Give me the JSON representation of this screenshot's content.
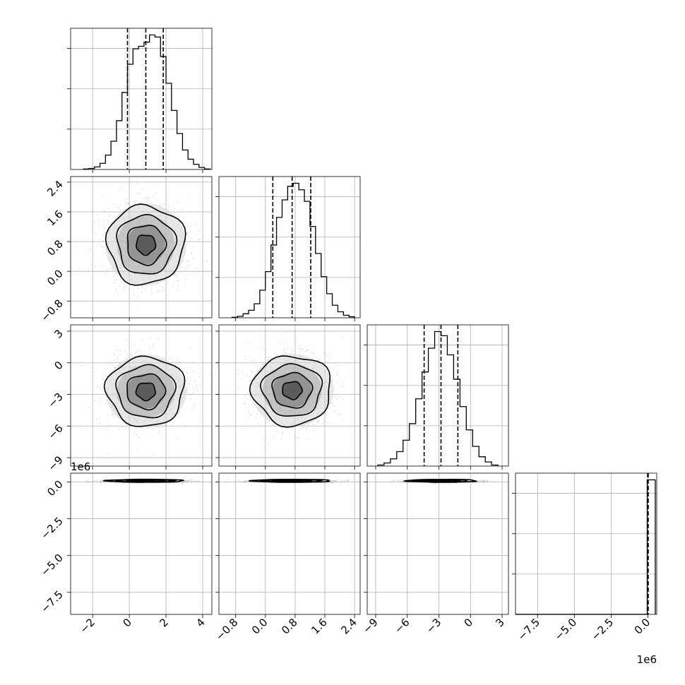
{
  "chart_data": {
    "type": "corner",
    "parameters": 4,
    "grid": true,
    "quantiles": [
      0.16,
      0.5,
      0.84
    ],
    "axes": [
      {
        "range": [
          -3.2,
          4.5
        ],
        "ticks": [
          -2,
          0,
          2,
          4
        ],
        "tick_labels": [
          "−2",
          "0",
          "2",
          "4"
        ],
        "offset_label": ""
      },
      {
        "range": [
          -1.25,
          2.55
        ],
        "ticks": [
          -0.8,
          0.0,
          0.8,
          1.6,
          2.4
        ],
        "tick_labels": [
          "−0.8",
          "0.0",
          "0.8",
          "1.6",
          "2.4"
        ],
        "offset_label": ""
      },
      {
        "range": [
          -9.8,
          3.6
        ],
        "ticks": [
          -9,
          -6,
          -3,
          0,
          3
        ],
        "tick_labels": [
          "−9",
          "−6",
          "−3",
          "0",
          "3"
        ],
        "offset_label": ""
      },
      {
        "range": [
          -9.0,
          0.6
        ],
        "ticks": [
          -7.5,
          -5.0,
          -2.5,
          0.0
        ],
        "tick_labels": [
          "−7.5",
          "−5.0",
          "−2.5",
          "0.0"
        ],
        "offset_label": "1e6"
      }
    ],
    "marginals": [
      {
        "param": 0,
        "quantile_values": [
          -0.1,
          0.9,
          1.85
        ],
        "bin_edges": [
          -2.5,
          -2.2,
          -1.9,
          -1.6,
          -1.3,
          -1.0,
          -0.7,
          -0.4,
          -0.1,
          0.2,
          0.5,
          0.8,
          1.1,
          1.4,
          1.7,
          2.0,
          2.3,
          2.6,
          2.9,
          3.2,
          3.5,
          3.8,
          4.1,
          4.4
        ],
        "counts": [
          1,
          2,
          5,
          12,
          28,
          55,
          95,
          150,
          205,
          235,
          240,
          248,
          262,
          258,
          220,
          168,
          115,
          70,
          38,
          20,
          10,
          4,
          1
        ]
      },
      {
        "param": 1,
        "quantile_values": [
          0.2,
          0.72,
          1.22
        ],
        "bin_edges": [
          -0.9,
          -0.75,
          -0.6,
          -0.45,
          -0.3,
          -0.15,
          0.0,
          0.15,
          0.3,
          0.45,
          0.6,
          0.75,
          0.9,
          1.05,
          1.2,
          1.35,
          1.5,
          1.65,
          1.8,
          1.95,
          2.1,
          2.25,
          2.4
        ],
        "counts": [
          1,
          3,
          8,
          15,
          28,
          55,
          92,
          145,
          200,
          235,
          262,
          268,
          255,
          232,
          182,
          128,
          82,
          48,
          25,
          12,
          5,
          2
        ]
      },
      {
        "param": 2,
        "quantile_values": [
          -4.4,
          -2.8,
          -1.2
        ],
        "bin_edges": [
          -8.8,
          -8.2,
          -7.6,
          -7.0,
          -6.4,
          -5.8,
          -5.2,
          -4.6,
          -4.0,
          -3.4,
          -2.8,
          -2.2,
          -1.6,
          -1.0,
          -0.4,
          0.2,
          0.8,
          1.4,
          2.0,
          2.6
        ],
        "counts": [
          2,
          6,
          14,
          28,
          50,
          82,
          130,
          182,
          228,
          260,
          252,
          215,
          168,
          115,
          70,
          38,
          18,
          8,
          2
        ]
      },
      {
        "param": 3,
        "quantile_values": [
          -0.02,
          0.0,
          0.02
        ],
        "bin_edges": [
          -9.0,
          -0.05,
          0.5
        ],
        "counts": [
          2,
          8000
        ]
      }
    ],
    "joint": [
      {
        "x_param": 0,
        "y_param": 1,
        "center": [
          0.9,
          0.72
        ],
        "spread": [
          1.05,
          0.53
        ],
        "contour_levels": [
          0.118,
          0.393,
          0.675,
          0.865
        ]
      },
      {
        "x_param": 0,
        "y_param": 2,
        "center": [
          0.9,
          -2.7
        ],
        "spread": [
          1.05,
          1.65
        ],
        "contour_levels": [
          0.118,
          0.393,
          0.675,
          0.865
        ]
      },
      {
        "x_param": 1,
        "y_param": 2,
        "center": [
          0.72,
          -2.6
        ],
        "spread": [
          0.53,
          1.65
        ],
        "contour_levels": [
          0.118,
          0.393,
          0.675,
          0.865
        ]
      },
      {
        "x_param": 0,
        "y_param": 3,
        "center": [
          0.9,
          0.08
        ],
        "spread": [
          1.05,
          0.05
        ],
        "contour_levels": [
          0.118,
          0.393,
          0.675,
          0.865
        ]
      },
      {
        "x_param": 1,
        "y_param": 3,
        "center": [
          0.72,
          0.08
        ],
        "spread": [
          0.53,
          0.05
        ],
        "contour_levels": [
          0.118,
          0.393,
          0.675,
          0.865
        ]
      },
      {
        "x_param": 2,
        "y_param": 3,
        "center": [
          -2.7,
          0.08
        ],
        "spread": [
          1.65,
          0.05
        ],
        "contour_levels": [
          0.118,
          0.393,
          0.675,
          0.865
        ]
      }
    ]
  }
}
